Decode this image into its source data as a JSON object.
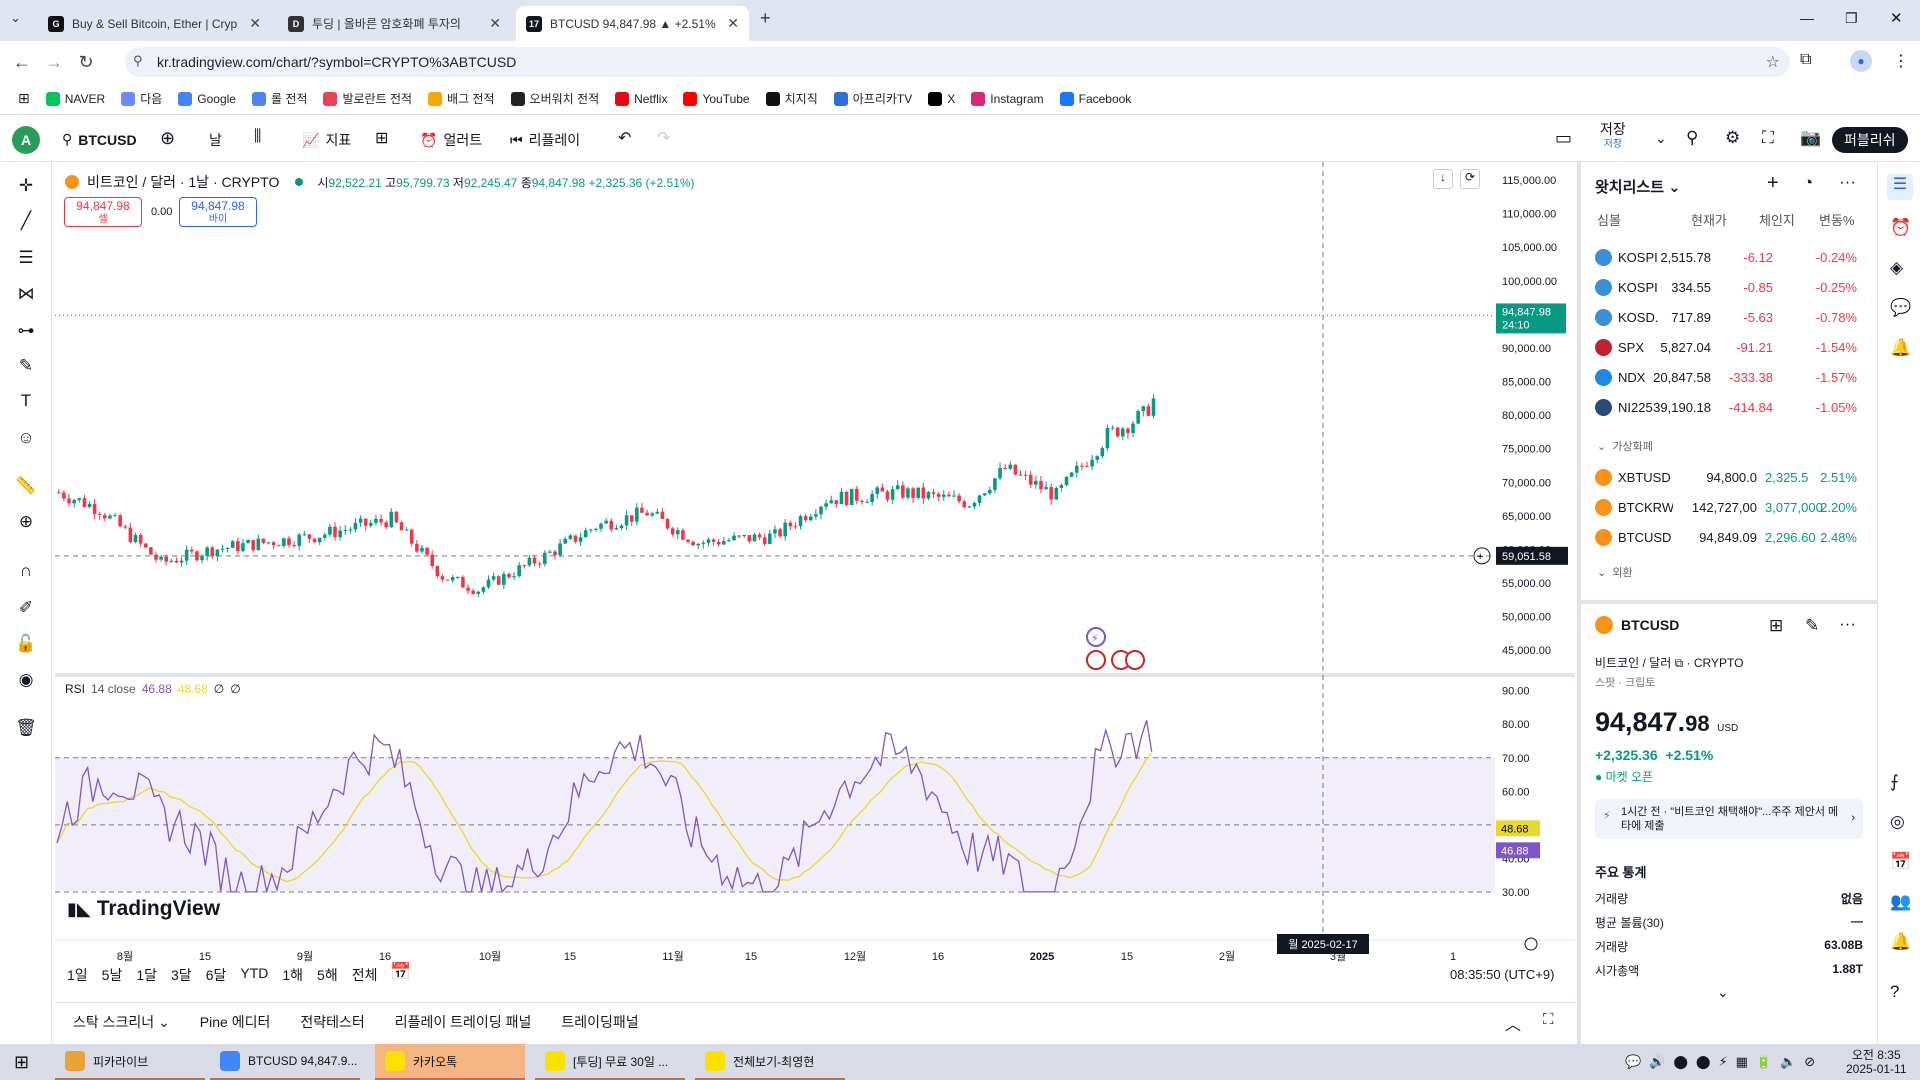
{
  "browser": {
    "tabs": [
      {
        "title": "Buy & Sell Bitcoin, Ether | Cryp",
        "icon": "gemini-icon"
      },
      {
        "title": "투딩 | 올바른 암호화폐 투자의",
        "icon": "tooding-icon"
      },
      {
        "title": "BTCUSD 94,847.98 ▲ +2.51%",
        "icon": "tradingview-icon",
        "active": true
      }
    ],
    "url": "kr.tradingview.com/chart/?symbol=CRYPTO%3ABTCUSD",
    "bookmarks": [
      {
        "label": "NAVER",
        "color": "#03c75a"
      },
      {
        "label": "다음",
        "color": "#6b8cff"
      },
      {
        "label": "Google",
        "color": "#4285f4"
      },
      {
        "label": "롤 전적",
        "color": "#5383e8"
      },
      {
        "label": "발로란트 전적",
        "color": "#e84057"
      },
      {
        "label": "배그 전적",
        "color": "#f2a900"
      },
      {
        "label": "오버워치 전적",
        "color": "#222222"
      },
      {
        "label": "Netflix",
        "color": "#e50914"
      },
      {
        "label": "YouTube",
        "color": "#ff0000"
      },
      {
        "label": "치지직",
        "color": "#111111"
      },
      {
        "label": "아프리카TV",
        "color": "#2f6fd6"
      },
      {
        "label": "X",
        "color": "#000000"
      },
      {
        "label": "Instagram",
        "color": "#d62976"
      },
      {
        "label": "Facebook",
        "color": "#1877f2"
      }
    ]
  },
  "toolbar": {
    "avatar": "A",
    "symbol": "BTCUSD",
    "interval": "날",
    "indicators": "지표",
    "alert": "얼러트",
    "replay": "리플레이",
    "save": "저장",
    "save_sub": "저장",
    "publish": "퍼블리쉬"
  },
  "legend": {
    "name": "비트코인 / 달러 · 1날 · CRYPTO",
    "o_label": "시",
    "o": "92,522.21",
    "h_label": "고",
    "h": "95,799.73",
    "l_label": "저",
    "l": "92,245.47",
    "c_label": "종",
    "c": "94,847.98",
    "change": "+2,325.36 (+2.51%)",
    "sell_price": "94,847.98",
    "sell_label": "셀",
    "spread": "0.00",
    "buy_price": "94,847.98",
    "buy_label": "바이"
  },
  "rsi_legend": {
    "name": "RSI",
    "params": "14 close",
    "v1": "46.88",
    "v2": "48.68",
    "v3": "∅",
    "v4": "∅"
  },
  "price_axis": [
    "115,000.00",
    "110,000.00",
    "105,000.00",
    "100,000.00",
    "95,000.00",
    "90,000.00",
    "85,000.00",
    "80,000.00",
    "75,000.00",
    "70,000.00",
    "65,000.00",
    "60,000.00",
    "55,000.00",
    "50,000.00",
    "45,000.00"
  ],
  "rsi_axis": [
    "90.00",
    "80.00",
    "70.00",
    "60.00",
    "50.00",
    "40.00",
    "30.00"
  ],
  "last_price_label": "94,847.98",
  "countdown": "24:10",
  "crosshair_price": "59,051.58",
  "crosshair_date": "월 2025-02-17",
  "rsi_value_1": "48.68",
  "rsi_value_2": "46.88",
  "time_axis": [
    "8월",
    "15",
    "9월",
    "16",
    "10월",
    "15",
    "11월",
    "15",
    "12월",
    "16",
    "2025",
    "15",
    "2월",
    "3월",
    "1"
  ],
  "watermark": "TradingView",
  "ranges": [
    "1일",
    "5날",
    "1달",
    "3달",
    "6달",
    "YTD",
    "1해",
    "5해",
    "전체"
  ],
  "clock": "08:35:50 (UTC+9)",
  "bottom_tabs": [
    "스탁 스크리너",
    "Pine 에디터",
    "전략테스터",
    "리플레이 트레이딩 패널",
    "트레이딩패널"
  ],
  "watchlist": {
    "title": "왓치리스트",
    "headers": [
      "심볼",
      "현재가",
      "체인지",
      "변동%"
    ],
    "rows": [
      {
        "sym": "KOSPI",
        "price": "2,515.78",
        "chg": "-6.12",
        "pct": "-0.24%",
        "color": "#3a8fd6",
        "neg": true
      },
      {
        "sym": "KOSPI",
        "price": "334.55",
        "chg": "-0.85",
        "pct": "-0.25%",
        "color": "#3a8fd6",
        "neg": true
      },
      {
        "sym": "KOSD.",
        "price": "717.89",
        "chg": "-5.63",
        "pct": "-0.78%",
        "color": "#3a8fd6",
        "neg": true
      },
      {
        "sym": "SPX",
        "price": "5,827.04",
        "chg": "-91.21",
        "pct": "-1.54%",
        "color": "#c21f30",
        "neg": true
      },
      {
        "sym": "NDX",
        "price": "20,847.58",
        "chg": "-333.38",
        "pct": "-1.57%",
        "color": "#1e88e5",
        "neg": true
      },
      {
        "sym": "NI225",
        "price": "39,190.18",
        "chg": "-414.84",
        "pct": "-1.05%",
        "color": "#2a4a7a",
        "neg": true
      }
    ],
    "section1": "가상화폐",
    "crypto_rows": [
      {
        "sym": "XBTUSD",
        "price": "94,800.0",
        "chg": "2,325.5",
        "pct": "2.51%",
        "color": "#f7931a"
      },
      {
        "sym": "BTCKRW",
        "price": "142,727,00",
        "chg": "3,077,000",
        "pct": "2.20%",
        "color": "#f7931a"
      },
      {
        "sym": "BTCUSD",
        "price": "94,849.09",
        "chg": "2,296.60",
        "pct": "2.48%",
        "color": "#f7931a"
      }
    ],
    "section2": "외환"
  },
  "details": {
    "symbol": "BTCUSD",
    "name": "비트코인 / 달러",
    "exchange": "CRYPTO",
    "type": "스팟 · 크립토",
    "price_main": "94,847.",
    "price_dec": "98",
    "currency": "USD",
    "change": "+2,325.36",
    "change_pct": "+2.51%",
    "market": "마켓 오픈",
    "news": "1시간 전 · \"비트코인 채택해야\"...주주 제안서 메타에 제출",
    "stats_title": "주요 통계",
    "stats": [
      {
        "label": "거래량",
        "value": "없음"
      },
      {
        "label": "평균 볼륨(30)",
        "value": "—"
      },
      {
        "label": "거래량",
        "value": "63.08B"
      },
      {
        "label": "시가총액",
        "value": "1.88T"
      }
    ]
  },
  "taskbar": {
    "apps": [
      {
        "label": "피카라이브",
        "color": "#e8a33a"
      },
      {
        "label": "BTCUSD 94,847.9...",
        "color": "#4285f4"
      },
      {
        "label": "카카오톡",
        "color": "#fae100"
      },
      {
        "label": "[투딩] 무료 30일 ...",
        "color": "#fae100"
      },
      {
        "label": "전체보기-최영현",
        "color": "#fae100"
      }
    ],
    "time": "오전 8:35",
    "date": "2025-01-11"
  },
  "chart_data": {
    "type": "candlestick",
    "price_range": [
      42500,
      116500
    ],
    "last_price": 94847.98,
    "candles_note": "daily BTCUSD candles, Jul 2024 - Jan 2025",
    "rsi_range": [
      27,
      92
    ],
    "rsi_upper": 70,
    "rsi_mid": 50,
    "rsi_lower": 30
  }
}
